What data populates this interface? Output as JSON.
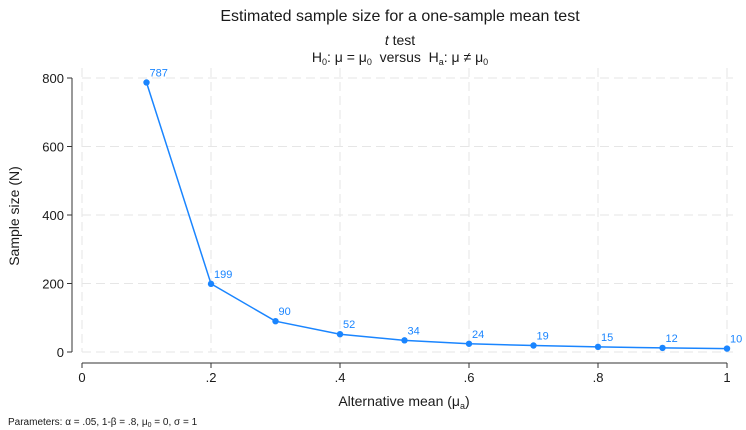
{
  "chart_data": {
    "type": "line",
    "title": "Estimated sample size for a one-sample mean test",
    "subtitle_1": {
      "italic": "t",
      "rest": " test"
    },
    "subtitle_2": {
      "h0_h": "H",
      "h0_sub": "0",
      "h0_mid": ": μ = μ",
      "h0_mu_sub": "0",
      "versus": "  versus  ",
      "ha_h": "H",
      "ha_sub": "a",
      "ha_mid": ": μ ≠ μ",
      "ha_mu_sub": "0"
    },
    "xlabel": {
      "main": "Alternative mean (μ",
      "sub": "a",
      "end": ")"
    },
    "ylabel": "Sample size (N)",
    "note": {
      "p1": "Parameters: α = .05, 1-β = .8, μ",
      "p1_sub": "0",
      "p2": " = 0, σ = 1"
    },
    "x": [
      0.1,
      0.2,
      0.3,
      0.4,
      0.5,
      0.6,
      0.7,
      0.8,
      0.9,
      1.0
    ],
    "values": [
      787,
      199,
      90,
      52,
      34,
      24,
      19,
      15,
      12,
      10
    ],
    "data_labels": [
      "787",
      "199",
      "90",
      "52",
      "34",
      "24",
      "19",
      "15",
      "12",
      "10"
    ],
    "xlim": [
      0,
      1
    ],
    "ylim": [
      0,
      800
    ],
    "x_ticks": [
      0,
      0.2,
      0.4,
      0.6,
      0.8,
      1.0
    ],
    "x_tick_labels": [
      "0",
      ".2",
      ".4",
      ".6",
      ".8",
      "1"
    ],
    "y_ticks": [
      0,
      200,
      400,
      600,
      800
    ],
    "y_tick_labels": [
      "0",
      "200",
      "400",
      "600",
      "800"
    ],
    "grid": true,
    "series_color": "#1a85ff",
    "grid_color": "#e6e6e6"
  }
}
